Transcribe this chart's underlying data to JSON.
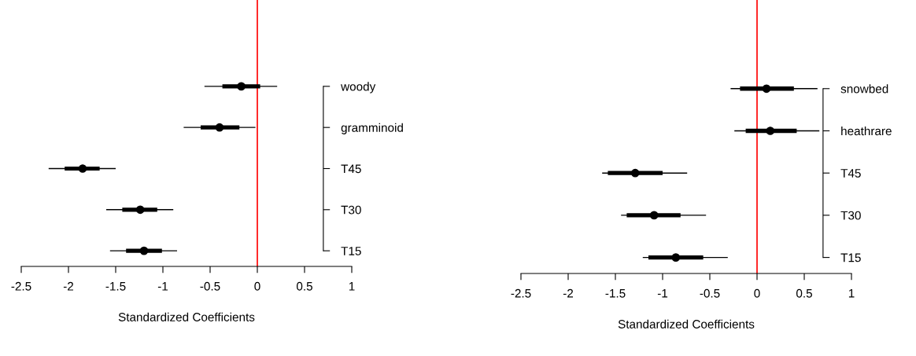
{
  "chart_data": [
    {
      "type": "bar",
      "orientation": "horizontal",
      "xlabel": "Standardized Coefficients",
      "categories": [
        "woody",
        "gramminoid",
        "T45",
        "T30",
        "T15"
      ],
      "xlim": [
        -2.5,
        1
      ],
      "xticks": [
        -2.5,
        -2,
        -1.5,
        -1,
        -0.5,
        0,
        0.5,
        1
      ],
      "ref_lines": [
        {
          "axis": "x",
          "value": 0,
          "color": "#ff0000"
        }
      ],
      "series": [
        {
          "type": "bar",
          "color": "#000000",
          "base": [
            -0.37,
            -0.6,
            -2.04,
            -1.43,
            -1.39
          ],
          "values": [
            0.4,
            0.41,
            0.37,
            0.37,
            0.38
          ]
        },
        {
          "type": "scatter",
          "color": "#000000",
          "marker": "circle",
          "values": [
            -0.17,
            -0.4,
            -1.85,
            -1.24,
            -1.2
          ],
          "errors": [
            [
              -0.56,
              0.21
            ],
            [
              -0.78,
              -0.02
            ],
            [
              -2.21,
              -1.5
            ],
            [
              -1.6,
              -0.89
            ],
            [
              -1.56,
              -0.85
            ]
          ]
        }
      ]
    },
    {
      "type": "bar",
      "orientation": "horizontal",
      "xlabel": "Standardized Coefficients",
      "categories": [
        "snowbed",
        "heathrare",
        "T45",
        "T30",
        "T15"
      ],
      "xlim": [
        -2.5,
        1
      ],
      "xticks": [
        -2.5,
        -2,
        -1.5,
        -1,
        -0.5,
        0,
        0.5,
        1
      ],
      "ref_lines": [
        {
          "axis": "x",
          "value": 0,
          "color": "#ff0000"
        }
      ],
      "series": [
        {
          "type": "bar",
          "color": "#000000",
          "base": [
            -0.18,
            -0.12,
            -1.58,
            -1.38,
            -1.15
          ],
          "values": [
            0.57,
            0.54,
            0.58,
            0.57,
            0.58
          ]
        },
        {
          "type": "scatter",
          "color": "#000000",
          "marker": "circle",
          "values": [
            0.1,
            0.14,
            -1.29,
            -1.09,
            -0.86
          ],
          "errors": [
            [
              -0.28,
              0.64
            ],
            [
              -0.24,
              0.66
            ],
            [
              -1.64,
              -0.74
            ],
            [
              -1.44,
              -0.54
            ],
            [
              -1.21,
              -0.31
            ]
          ]
        }
      ]
    }
  ]
}
